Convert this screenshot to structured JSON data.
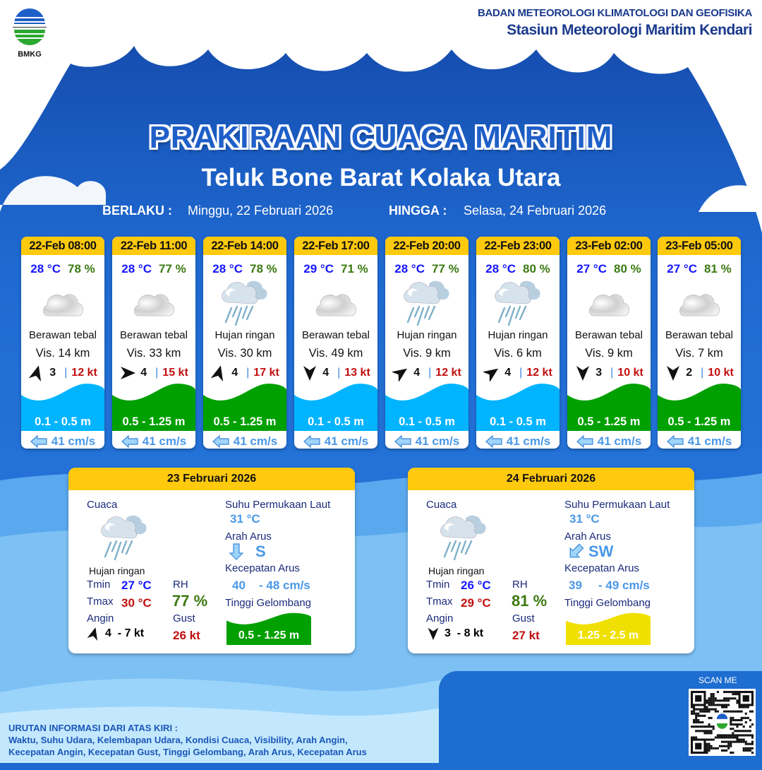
{
  "header": {
    "logo_text": "BMKG",
    "organization": "BADAN METEOROLOGI KLIMATOLOGI DAN GEOFISIKA",
    "station": "Stasiun Meteorologi Maritim Kendari"
  },
  "title": "PRAKIRAAN CUACA MARITIM",
  "area": "Teluk Bone Barat Kolaka Utara",
  "validity": {
    "from_label": "BERLAKU :",
    "from_value": "Minggu, 22 Februari 2026",
    "to_label": "HINGGA :",
    "to_value": "Selasa, 24 Februari 2026"
  },
  "colors": {
    "wave_low": "#00b4ff",
    "wave_moderate": "#00a000",
    "wave_high": "#f0e000",
    "header_yellow": "#ffc90e"
  },
  "forecasts": [
    {
      "time": "22-Feb 08:00",
      "temp": "28 °C",
      "rh": "78 %",
      "icon": "cloudy-icon",
      "condition": "Berawan tebal",
      "vis": "Vis.  14 km",
      "wind_arrow_deg": 15,
      "wind_speed": "3",
      "gust": "12 kt",
      "wave": "0.1 - 0.5 m",
      "wave_level": "low",
      "current_dir_icon": "arrow-left-icon",
      "current": "41 cm/s"
    },
    {
      "time": "22-Feb 11:00",
      "temp": "28 °C",
      "rh": "77 %",
      "icon": "cloudy-icon",
      "condition": "Berawan tebal",
      "vis": "Vis. 33 km",
      "wind_arrow_deg": 90,
      "wind_speed": "4",
      "gust": "15 kt",
      "wave": "0.5 - 1.25 m",
      "wave_level": "moderate",
      "current_dir_icon": "arrow-left-icon",
      "current": "41 cm/s"
    },
    {
      "time": "22-Feb 14:00",
      "temp": "28 °C",
      "rh": "78 %",
      "icon": "rain-icon",
      "condition": "Hujan ringan",
      "vis": "Vis. 30 km",
      "wind_arrow_deg": 15,
      "wind_speed": "4",
      "gust": "17 kt",
      "wave": "0.5 - 1.25 m",
      "wave_level": "moderate",
      "current_dir_icon": "arrow-left-icon",
      "current": "41 cm/s"
    },
    {
      "time": "22-Feb 17:00",
      "temp": "29 °C",
      "rh": "71 %",
      "icon": "cloudy-icon",
      "condition": "Berawan tebal",
      "vis": "Vis.  49 km",
      "wind_arrow_deg": 180,
      "wind_speed": "4",
      "gust": "13 kt",
      "wave": "0.1 - 0.5 m",
      "wave_level": "low",
      "current_dir_icon": "arrow-left-icon",
      "current": "41 cm/s"
    },
    {
      "time": "22-Feb 20:00",
      "temp": "28 °C",
      "rh": "77 %",
      "icon": "rain-icon",
      "condition": "Hujan ringan",
      "vis": "Vis.  9 km",
      "wind_arrow_deg": 55,
      "wind_speed": "4",
      "gust": "12 kt",
      "wave": "0.1 - 0.5 m",
      "wave_level": "low",
      "current_dir_icon": "arrow-left-icon",
      "current": "41 cm/s"
    },
    {
      "time": "22-Feb 23:00",
      "temp": "28 °C",
      "rh": "80 %",
      "icon": "rain-icon",
      "condition": "Hujan ringan",
      "vis": "Vis.  6 km",
      "wind_arrow_deg": 55,
      "wind_speed": "4",
      "gust": "12 kt",
      "wave": "0.1 - 0.5 m",
      "wave_level": "low",
      "current_dir_icon": "arrow-left-icon",
      "current": "41 cm/s"
    },
    {
      "time": "23-Feb 02:00",
      "temp": "27 °C",
      "rh": "80 %",
      "icon": "cloudy-icon",
      "condition": "Berawan tebal",
      "vis": "Vis.  9 km",
      "wind_arrow_deg": 180,
      "wind_speed": "3",
      "gust": "10 kt",
      "wave": "0.5 - 1.25 m",
      "wave_level": "moderate",
      "current_dir_icon": "arrow-left-icon",
      "current": "41 cm/s"
    },
    {
      "time": "23-Feb 05:00",
      "temp": "27 °C",
      "rh": "81 %",
      "icon": "cloudy-icon",
      "condition": "Berawan tebal",
      "vis": "Vis.  7 km",
      "wind_arrow_deg": 180,
      "wind_speed": "2",
      "gust": "10 kt",
      "wave": "0.5 - 1.25 m",
      "wave_level": "moderate",
      "current_dir_icon": "arrow-left-icon",
      "current": "41 cm/s"
    }
  ],
  "labels": {
    "weather": "Cuaca",
    "tmin": "Tmin",
    "tmax": "Tmax",
    "wind": "Angin",
    "rh": "RH",
    "gust": "Gust",
    "sst": "Suhu Permukaan Laut",
    "current_dir": "Arah Arus",
    "current_speed": "Kecepatan Arus",
    "wave": "Tinggi Gelombang"
  },
  "daily": [
    {
      "date": "23 Februari 2026",
      "condition": "Hujan ringan",
      "icon": "rain-icon",
      "tmin": "27 °C",
      "tmax": "30 °C",
      "rh": "77 %",
      "wind_arrow_deg": 15,
      "wind": "4  - 7 kt",
      "gust": "26 kt",
      "sst": "31 °C",
      "current_dir": "S",
      "current_arrow_deg": 180,
      "current_min": "40",
      "current_max": "- 48 cm/s",
      "wave": "0.5 - 1.25 m",
      "wave_level": "moderate"
    },
    {
      "date": "24 Februari 2026",
      "condition": "Hujan ringan",
      "icon": "rain-icon",
      "tmin": "26 °C",
      "tmax": "29 °C",
      "rh": "81 %",
      "wind_arrow_deg": 180,
      "wind": "3  - 8 kt",
      "gust": "27 kt",
      "sst": "31 °C",
      "current_dir": "SW",
      "current_arrow_deg": 225,
      "current_min": "39",
      "current_max": "- 49 cm/s",
      "wave": "1.25 - 2.5 m",
      "wave_level": "high"
    }
  ],
  "footer": {
    "legend_title": "URUTAN INFORMASI DARI ATAS KIRI :",
    "legend_line1": "Waktu, Suhu Udara, Kelembapan Udara, Kondisi Cuaca, Visibility, Arah Angin,",
    "legend_line2": "Kecepatan Angin, Kecepatan Gust, Tinggi Gelombang, Arah Arus, Kecepatan Arus",
    "scan_label": "SCAN ME"
  }
}
